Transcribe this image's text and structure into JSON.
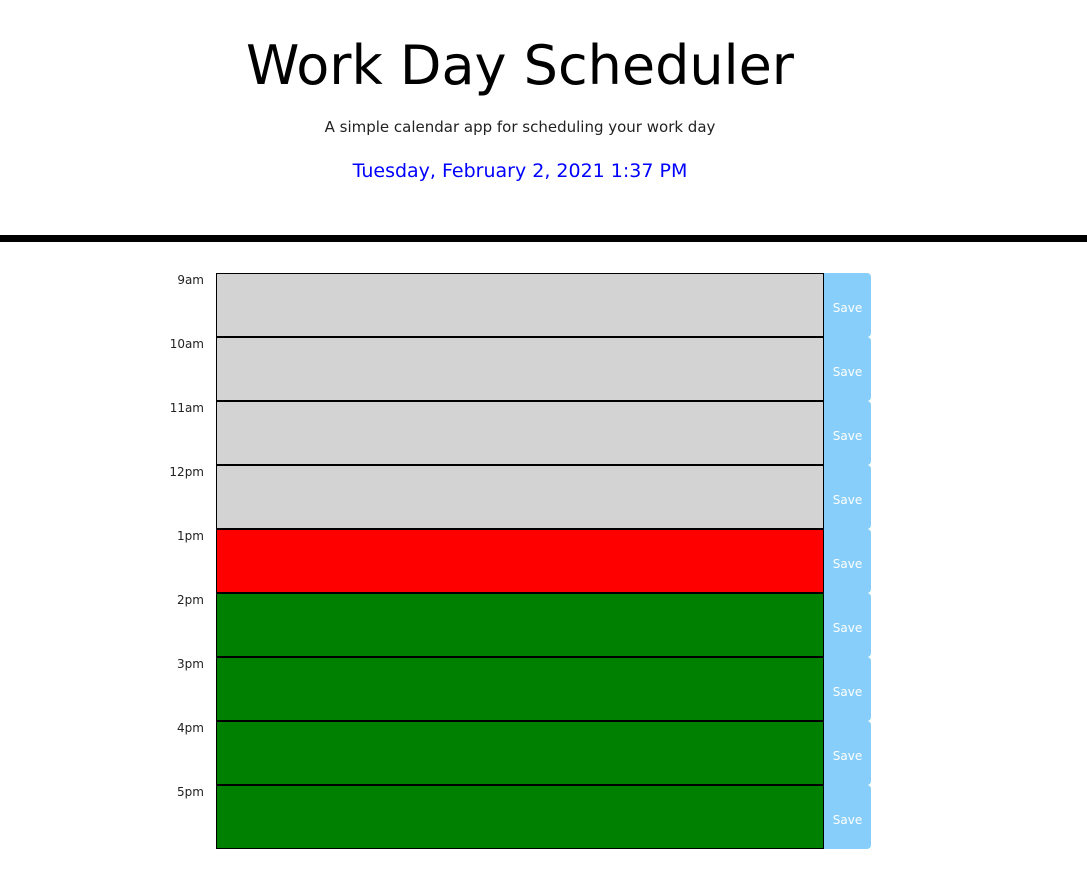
{
  "header": {
    "title": "Work Day Scheduler",
    "subtitle": "A simple calendar app for scheduling your work day",
    "current_day": "Tuesday, February 2, 2021 1:37 PM"
  },
  "colors": {
    "past": "#d3d3d3",
    "present": "#ff0000",
    "future": "#008000",
    "save_button": "#87cefa",
    "current_day_text": "#0000ff"
  },
  "time_blocks": [
    {
      "hour": "9am",
      "status": "past",
      "text": "",
      "save_label": "Save"
    },
    {
      "hour": "10am",
      "status": "past",
      "text": "",
      "save_label": "Save"
    },
    {
      "hour": "11am",
      "status": "past",
      "text": "",
      "save_label": "Save"
    },
    {
      "hour": "12pm",
      "status": "past",
      "text": "",
      "save_label": "Save"
    },
    {
      "hour": "1pm",
      "status": "present",
      "text": "",
      "save_label": "Save"
    },
    {
      "hour": "2pm",
      "status": "future",
      "text": "",
      "save_label": "Save"
    },
    {
      "hour": "3pm",
      "status": "future",
      "text": "",
      "save_label": "Save"
    },
    {
      "hour": "4pm",
      "status": "future",
      "text": "",
      "save_label": "Save"
    },
    {
      "hour": "5pm",
      "status": "future",
      "text": "",
      "save_label": "Save"
    }
  ]
}
